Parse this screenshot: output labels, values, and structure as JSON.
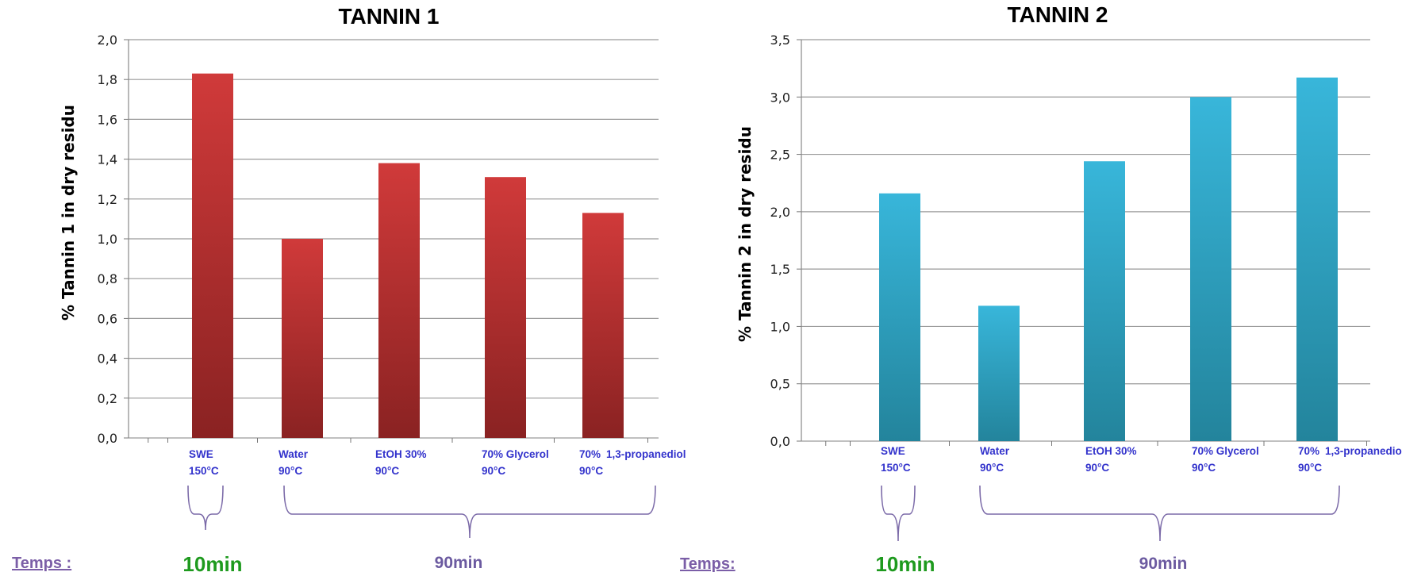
{
  "chart_data": [
    {
      "type": "bar",
      "title": "TANNIN 1",
      "ylabel": "% Tannin 1 in dry residu",
      "xlabel": "",
      "categories": [
        [
          "SWE",
          "150°C"
        ],
        [
          "Water",
          "90°C"
        ],
        [
          "EtOH 30%",
          "90°C"
        ],
        [
          "70% Glycerol",
          "90°C"
        ],
        [
          "70%",
          "1,3-propanediol",
          "90°C"
        ]
      ],
      "values": [
        1.83,
        1.0,
        1.38,
        1.31,
        1.13
      ],
      "ylim": [
        0,
        2.0
      ],
      "yticks": [
        "0,0",
        "0,2",
        "0,4",
        "0,6",
        "0,8",
        "1,0",
        "1,2",
        "1,4",
        "1,6",
        "1,8",
        "2,0"
      ],
      "grid": true,
      "color": "#c8383a",
      "color_dark": "#8a2222"
    },
    {
      "type": "bar",
      "title": "TANNIN 2",
      "ylabel": "% Tannin 2 in dry residu",
      "xlabel": "",
      "categories": [
        [
          "SWE",
          "150°C"
        ],
        [
          "Water",
          "90°C"
        ],
        [
          "EtOH 30%",
          "90°C"
        ],
        [
          "70% Glycerol",
          "90°C"
        ],
        [
          "70%",
          "1,3-propanediol",
          "90°C"
        ]
      ],
      "values": [
        2.16,
        1.18,
        2.44,
        3.0,
        3.17
      ],
      "ylim": [
        0,
        3.5
      ],
      "yticks": [
        "0,0",
        "0,5",
        "1,0",
        "1,5",
        "2,0",
        "2,5",
        "3,0",
        "3,5"
      ],
      "grid": true,
      "color": "#35b4d8",
      "color_dark": "#23849c"
    }
  ],
  "annotations": [
    {
      "temps_label": "Temps :",
      "short_time": "10min",
      "long_time": "90min"
    },
    {
      "temps_label": "Temps:",
      "short_time": "10min",
      "long_time": "90min"
    }
  ]
}
